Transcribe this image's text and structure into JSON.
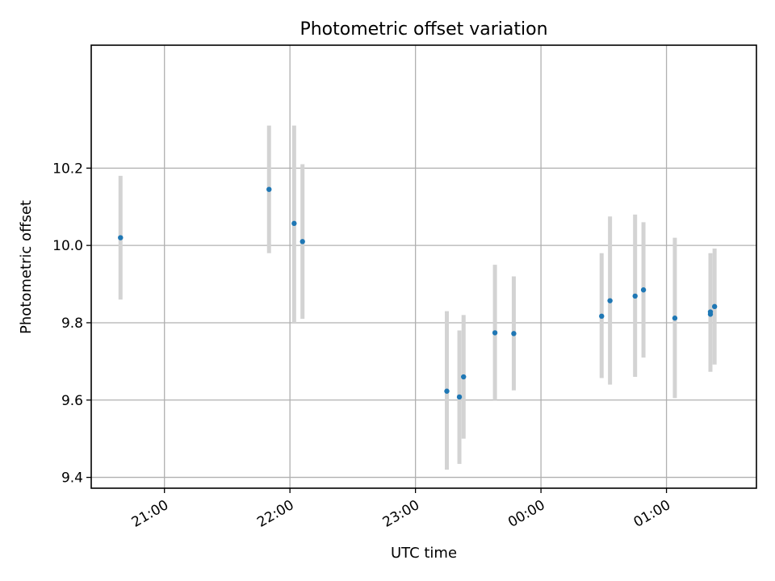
{
  "chart_data": {
    "type": "scatter",
    "title": "Photometric offset variation",
    "xlabel": "UTC time",
    "ylabel": "Photometric offset",
    "x_axis": {
      "type": "time",
      "range": [
        "20:25",
        "01:43"
      ],
      "ticks": [
        "21:00",
        "22:00",
        "23:00",
        "00:00",
        "01:00"
      ]
    },
    "y_axis": {
      "range": [
        9.372,
        10.518
      ],
      "ticks": [
        {
          "value": 9.4,
          "label": "9.4"
        },
        {
          "value": 9.6,
          "label": "9.6"
        },
        {
          "value": 9.8,
          "label": "9.8"
        },
        {
          "value": 10.0,
          "label": "10.0"
        },
        {
          "value": 10.2,
          "label": "10.2"
        }
      ]
    },
    "grid": true,
    "series": [
      {
        "marker_color": "#1f77b4",
        "errorbar_color": "#d3d3d3",
        "points": [
          {
            "time": "20:39",
            "y": 10.02,
            "lo": 9.86,
            "hi": 10.18
          },
          {
            "time": "21:50",
            "y": 10.145,
            "lo": 9.98,
            "hi": 10.31
          },
          {
            "time": "22:02",
            "y": 10.057,
            "lo": 9.8,
            "hi": 10.31
          },
          {
            "time": "22:06",
            "y": 10.01,
            "lo": 9.81,
            "hi": 10.21
          },
          {
            "time": "23:15",
            "y": 9.623,
            "lo": 9.42,
            "hi": 9.83
          },
          {
            "time": "23:21",
            "y": 9.608,
            "lo": 9.435,
            "hi": 9.78
          },
          {
            "time": "23:23",
            "y": 9.66,
            "lo": 9.5,
            "hi": 9.82
          },
          {
            "time": "23:38",
            "y": 9.774,
            "lo": 9.6,
            "hi": 9.95
          },
          {
            "time": "23:47",
            "y": 9.772,
            "lo": 9.625,
            "hi": 9.92
          },
          {
            "time": "00:29",
            "y": 9.817,
            "lo": 9.657,
            "hi": 9.98
          },
          {
            "time": "00:33",
            "y": 9.857,
            "lo": 9.64,
            "hi": 10.075
          },
          {
            "time": "00:45",
            "y": 9.869,
            "lo": 9.66,
            "hi": 10.08
          },
          {
            "time": "00:49",
            "y": 9.885,
            "lo": 9.71,
            "hi": 10.06
          },
          {
            "time": "01:04",
            "y": 9.812,
            "lo": 9.605,
            "hi": 10.02
          },
          {
            "time": "01:21",
            "y": 9.822,
            "lo": 9.673,
            "hi": 9.977
          },
          {
            "time": "01:21",
            "y": 9.828,
            "lo": 9.675,
            "hi": 9.98
          },
          {
            "time": "01:23",
            "y": 9.842,
            "lo": 9.692,
            "hi": 9.992
          }
        ]
      }
    ]
  }
}
